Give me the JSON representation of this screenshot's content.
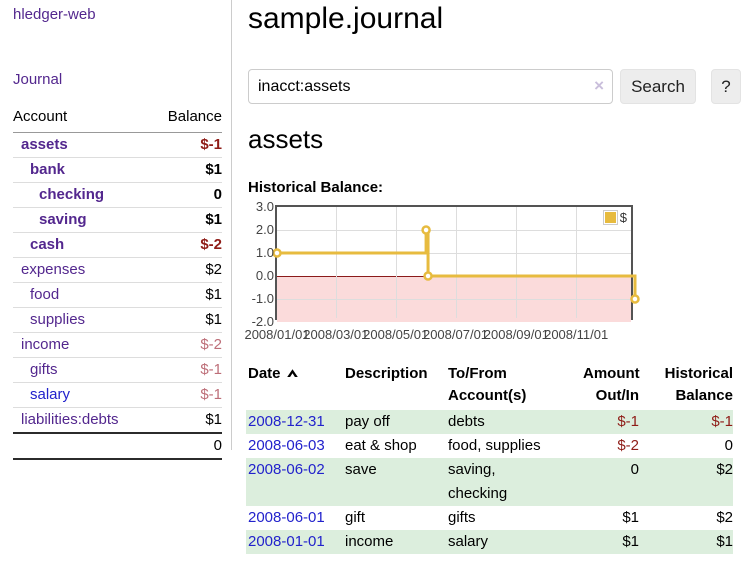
{
  "app": {
    "title": "hledger-web",
    "nav_journal": "Journal"
  },
  "sidebar": {
    "header": {
      "account": "Account",
      "balance": "Balance"
    },
    "accounts": [
      {
        "name": "assets",
        "depth": 1,
        "bold": true,
        "balance": "$-1",
        "neg": "strong"
      },
      {
        "name": "bank",
        "depth": 2,
        "bold": true,
        "balance": "$1",
        "neg": "none"
      },
      {
        "name": "checking",
        "depth": 3,
        "bold": true,
        "balance": "0",
        "neg": "none"
      },
      {
        "name": "saving",
        "depth": 3,
        "bold": true,
        "balance": "$1",
        "neg": "none"
      },
      {
        "name": "cash",
        "depth": 2,
        "bold": true,
        "balance": "$-2",
        "neg": "strong"
      },
      {
        "name": "expenses",
        "depth": 1,
        "bold": false,
        "balance": "$2",
        "neg": "none"
      },
      {
        "name": "food",
        "depth": 2,
        "bold": false,
        "balance": "$1",
        "neg": "none"
      },
      {
        "name": "supplies",
        "depth": 2,
        "bold": false,
        "balance": "$1",
        "neg": "none"
      },
      {
        "name": "income",
        "depth": 1,
        "bold": false,
        "balance": "$-2",
        "neg": "soft"
      },
      {
        "name": "gifts",
        "depth": 2,
        "bold": false,
        "balance": "$-1",
        "neg": "soft"
      },
      {
        "name": "salary",
        "depth": 2,
        "bold": false,
        "balance": "$-1",
        "neg": "soft",
        "link_color": "blue"
      },
      {
        "name": "liabilities:debts",
        "depth": 1,
        "bold": false,
        "balance": "$1",
        "neg": "none"
      }
    ],
    "total": "0"
  },
  "main": {
    "title": "sample.journal",
    "search": {
      "value": "inacct:assets",
      "clear_icon": "×",
      "button_label": "Search",
      "help_label": "?"
    },
    "account_heading": "assets",
    "chart_label": "Historical Balance:"
  },
  "chart_data": {
    "type": "line",
    "title": "Historical Balance:",
    "series": [
      {
        "name": "$",
        "step": true,
        "points": [
          [
            "2008-01-01",
            1
          ],
          [
            "2008-06-01",
            2
          ],
          [
            "2008-06-03",
            0
          ],
          [
            "2008-12-31",
            -1
          ]
        ]
      }
    ],
    "point_days": [
      [
        0,
        1
      ],
      [
        152,
        2
      ],
      [
        154,
        0
      ],
      [
        365,
        -1
      ]
    ],
    "x_ticks": [
      "2008/01/01",
      "2008/03/01",
      "2008/05/01",
      "2008/07/01",
      "2008/09/01",
      "2008/11/01"
    ],
    "tick_days": [
      0,
      60,
      121,
      182,
      244,
      305
    ],
    "x_range_days": 365,
    "y_ticks": [
      "3.0",
      "2.0",
      "1.0",
      "0.0",
      "-1.0",
      "-2.0"
    ],
    "ylim": [
      -2,
      3
    ],
    "grid": true,
    "negative_region_shaded": true,
    "legend": {
      "label": "$",
      "position": "top-right"
    }
  },
  "register": {
    "headers": [
      {
        "label": "Date",
        "sort": "asc"
      },
      {
        "label": "Description"
      },
      {
        "label": "To/From Account(s)"
      },
      {
        "label": "Amount Out/In",
        "align": "right"
      },
      {
        "label": "Historical Balance",
        "align": "right"
      }
    ],
    "rows": [
      {
        "date": "2008-12-31",
        "description": "pay off",
        "accounts_lines": [
          "debts"
        ],
        "amount": "$-1",
        "amount_neg": true,
        "balance": "$-1",
        "balance_neg": true,
        "striped": true
      },
      {
        "date": "2008-06-03",
        "description": "eat & shop",
        "accounts_lines": [
          "food, supplies"
        ],
        "amount": "$-2",
        "amount_neg": true,
        "balance": "0",
        "balance_neg": false,
        "striped": false
      },
      {
        "date": "2008-06-02",
        "description": "save",
        "accounts_lines": [
          "saving,",
          "checking"
        ],
        "amount": "0",
        "amount_neg": false,
        "balance": "$2",
        "balance_neg": false,
        "striped": true
      },
      {
        "date": "2008-06-01",
        "description": "gift",
        "accounts_lines": [
          "gifts"
        ],
        "amount": "$1",
        "amount_neg": false,
        "balance": "$2",
        "balance_neg": false,
        "striped": false
      },
      {
        "date": "2008-01-01",
        "description": "income",
        "accounts_lines": [
          "salary"
        ],
        "amount": "$1",
        "amount_neg": false,
        "balance": "$1",
        "balance_neg": false,
        "striped": true
      }
    ]
  },
  "colors": {
    "purple": "#53278E",
    "blue": "#2222CC",
    "link-date": "#2222CC",
    "neg-strong": "#8F1C17",
    "neg-soft": "#BD6E78",
    "stripe": "#DCEEDD",
    "gold": "#E7BB3F",
    "zero": "#8B1A1A",
    "pink": "#FBDBDB",
    "grid": "#DDDDDD",
    "chart-border": "#545454",
    "tick": "#444444",
    "button-bg": "#EDEDED",
    "input-border": "#CCCCCC",
    "clear-icon": "#C9BEDB"
  }
}
